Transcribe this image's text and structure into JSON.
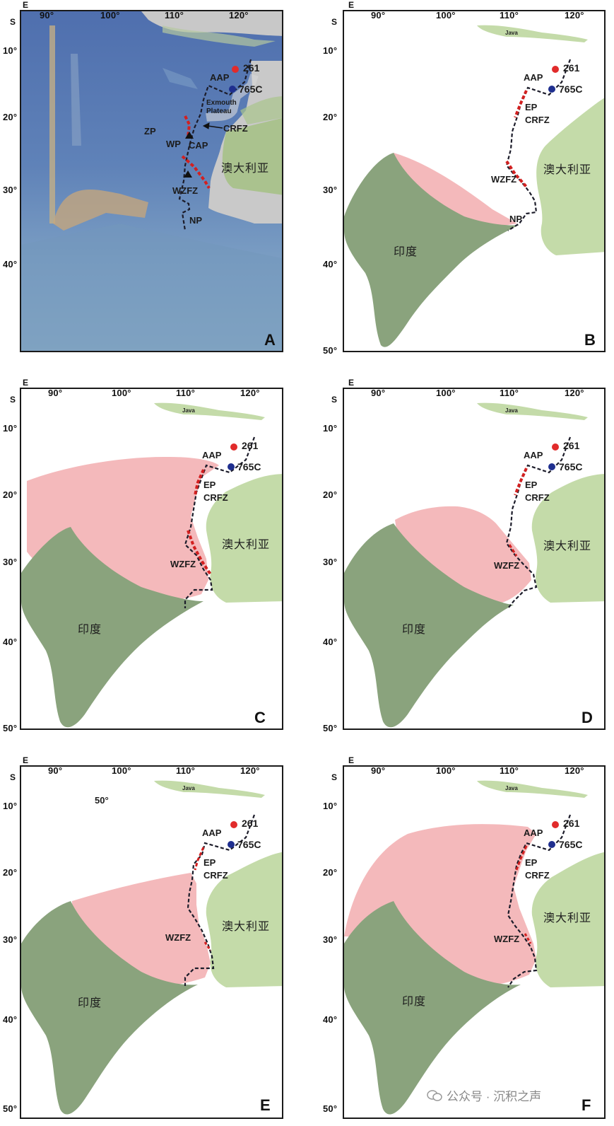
{
  "axes": {
    "lon_labels": [
      "90°",
      "100°",
      "110°",
      "120°"
    ],
    "lat_labels": [
      "10°",
      "20°",
      "30°",
      "40°",
      "50°"
    ],
    "lon_corner": "E",
    "lat_corner": "S"
  },
  "colors": {
    "india": "#8aa37d",
    "australia": "#c4dba9",
    "java": "#c4dba9",
    "pink": "#f4b9bb",
    "site_261": "#e12b2b",
    "site_765C": "#1f2f8f",
    "boundary": "#1c1c2a",
    "rift": "#d22020",
    "ocean_A": "#5d7fb6"
  },
  "common": {
    "site_261": "261",
    "site_765c": "765C",
    "aap": "AAP",
    "ep": "EP",
    "crfz": "CRFZ",
    "wzfz": "WZFZ",
    "np": "NP",
    "australia": "澳大利亚",
    "india": "印度",
    "java": "Java"
  },
  "panel_a": {
    "letter": "A",
    "exmouth": "Exmouth",
    "plateau": "Plateau",
    "zp": "ZP",
    "wp": "WP",
    "cap": "CAP"
  },
  "panel_b": {
    "letter": "B"
  },
  "panel_c": {
    "letter": "C"
  },
  "panel_d": {
    "letter": "D"
  },
  "panel_e": {
    "letter": "E",
    "stray_label": "50°"
  },
  "panel_f": {
    "letter": "F"
  },
  "watermark": "公众号 · 沉积之声"
}
